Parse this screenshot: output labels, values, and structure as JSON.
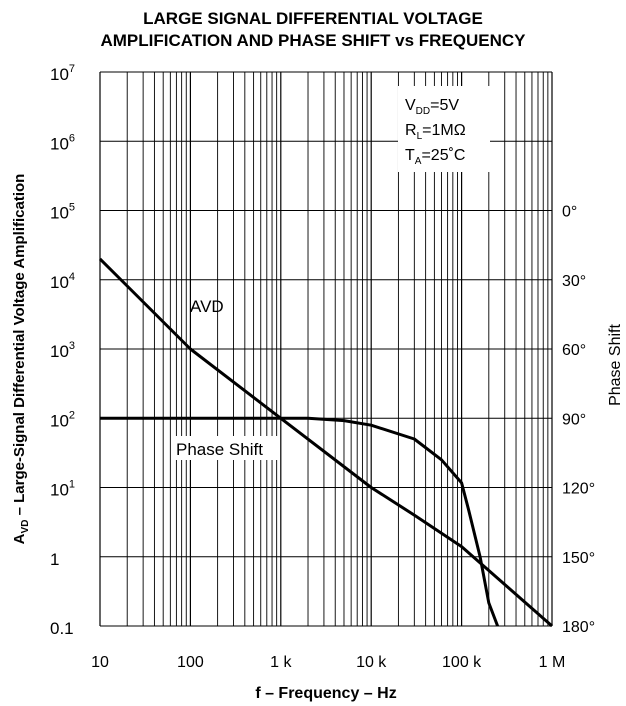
{
  "chart_data": {
    "type": "line",
    "title_line1": "LARGE SIGNAL DIFFERENTIAL VOLTAGE",
    "title_line2": "AMPLIFICATION AND PHASE SHIFT vs FREQUENCY",
    "xlabel": "f – Frequency – Hz",
    "ylabel_left": "– Large-Signal Differential Voltage Amplification",
    "ylabel_left_prefix": "A",
    "ylabel_left_sub": "VD",
    "ylabel_right": "Phase Shift",
    "x_scale": "log",
    "xlim": [
      10,
      1000000
    ],
    "x_ticks": [
      {
        "value": 10,
        "label": "10"
      },
      {
        "value": 100,
        "label": "100"
      },
      {
        "value": 1000,
        "label": "1 k"
      },
      {
        "value": 10000,
        "label": "10 k"
      },
      {
        "value": 100000,
        "label": "100 k"
      },
      {
        "value": 1000000,
        "label": "1 M"
      }
    ],
    "y_left_scale": "log",
    "y_left_lim": [
      0.1,
      10000000
    ],
    "y_left_ticks": [
      {
        "value": 0.1,
        "base": "0.1",
        "exp": ""
      },
      {
        "value": 1,
        "base": "1",
        "exp": ""
      },
      {
        "value": 10,
        "base": "10",
        "exp": "1"
      },
      {
        "value": 100,
        "base": "10",
        "exp": "2"
      },
      {
        "value": 1000,
        "base": "10",
        "exp": "3"
      },
      {
        "value": 10000,
        "base": "10",
        "exp": "4"
      },
      {
        "value": 100000,
        "base": "10",
        "exp": "5"
      },
      {
        "value": 1000000,
        "base": "10",
        "exp": "6"
      },
      {
        "value": 10000000,
        "base": "10",
        "exp": "7"
      }
    ],
    "y_right_ticks": [
      {
        "value": 0,
        "label": "0°"
      },
      {
        "value": 30,
        "label": "30°"
      },
      {
        "value": 60,
        "label": "60°"
      },
      {
        "value": 90,
        "label": "90°"
      },
      {
        "value": 120,
        "label": "120°"
      },
      {
        "value": 150,
        "label": "150°"
      },
      {
        "value": 180,
        "label": "180°"
      }
    ],
    "grid": true,
    "conditions": [
      {
        "main": "V",
        "sub": "DD",
        "rest": "=5V"
      },
      {
        "main": "R",
        "sub": "L",
        "rest": "=1MΩ"
      },
      {
        "main": "T",
        "sub": "A",
        "rest": "=25˚C"
      }
    ],
    "series": [
      {
        "name": "AVD",
        "axis": "left",
        "x": [
          10,
          100,
          1000,
          10000,
          30000,
          100000,
          1000000
        ],
        "y": [
          20000,
          1000,
          100,
          10,
          4,
          1.4,
          0.1
        ]
      },
      {
        "name": "Phase Shift",
        "axis": "right",
        "x": [
          10,
          100,
          1000,
          2000,
          5000,
          10000,
          30000,
          60000,
          100000,
          120000,
          160000,
          200000,
          250000
        ],
        "y": [
          90,
          90,
          90,
          90,
          91,
          93,
          99,
          108,
          118,
          130,
          150,
          170,
          180
        ]
      }
    ]
  }
}
